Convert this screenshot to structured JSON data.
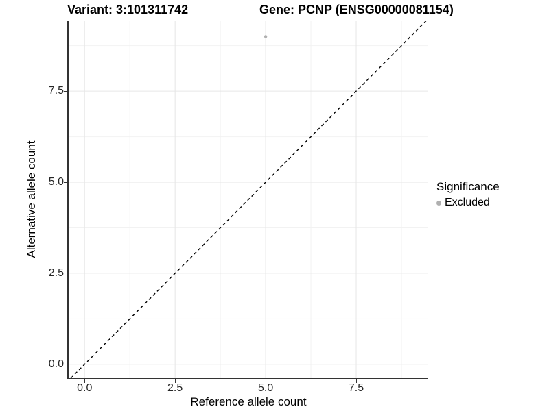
{
  "chart_data": {
    "type": "scatter",
    "title_left": "Variant: 3:101311742",
    "title_right": "Gene: PCNP (ENSG00000081154)",
    "xlabel": "Reference allele count",
    "ylabel": "Alternative allele count",
    "xlim": [
      -0.44,
      9.47
    ],
    "ylim": [
      -0.38,
      9.44
    ],
    "x_ticks": [
      0.0,
      2.5,
      5.0,
      7.5
    ],
    "x_tick_labels": [
      "0.0",
      "2.5",
      "5.0",
      "7.5"
    ],
    "y_ticks": [
      0.0,
      2.5,
      5.0,
      7.5
    ],
    "y_tick_labels": [
      "0.0",
      "2.5",
      "5.0",
      "7.5"
    ],
    "minor_x": [
      1.25,
      3.75,
      6.25,
      8.75
    ],
    "minor_y": [
      1.25,
      3.75,
      6.25,
      8.75
    ],
    "grid": true,
    "legend_position": "right",
    "legend": {
      "title": "Significance",
      "items": [
        {
          "label": "Excluded",
          "color": "#b0b0b0"
        }
      ]
    },
    "series": [
      {
        "name": "Excluded",
        "color": "#b0b0b0",
        "points": [
          {
            "x": 5,
            "y": 9
          }
        ]
      }
    ],
    "reference_line": {
      "type": "identity",
      "slope": 1,
      "intercept": 0,
      "style": "dashed",
      "color": "#000000"
    },
    "colors": {
      "grid_major": "#e6e6e6",
      "grid_minor": "#f2f2f2",
      "axis_line": "#333333",
      "tick_text": "#262626",
      "background": "#ffffff"
    }
  }
}
